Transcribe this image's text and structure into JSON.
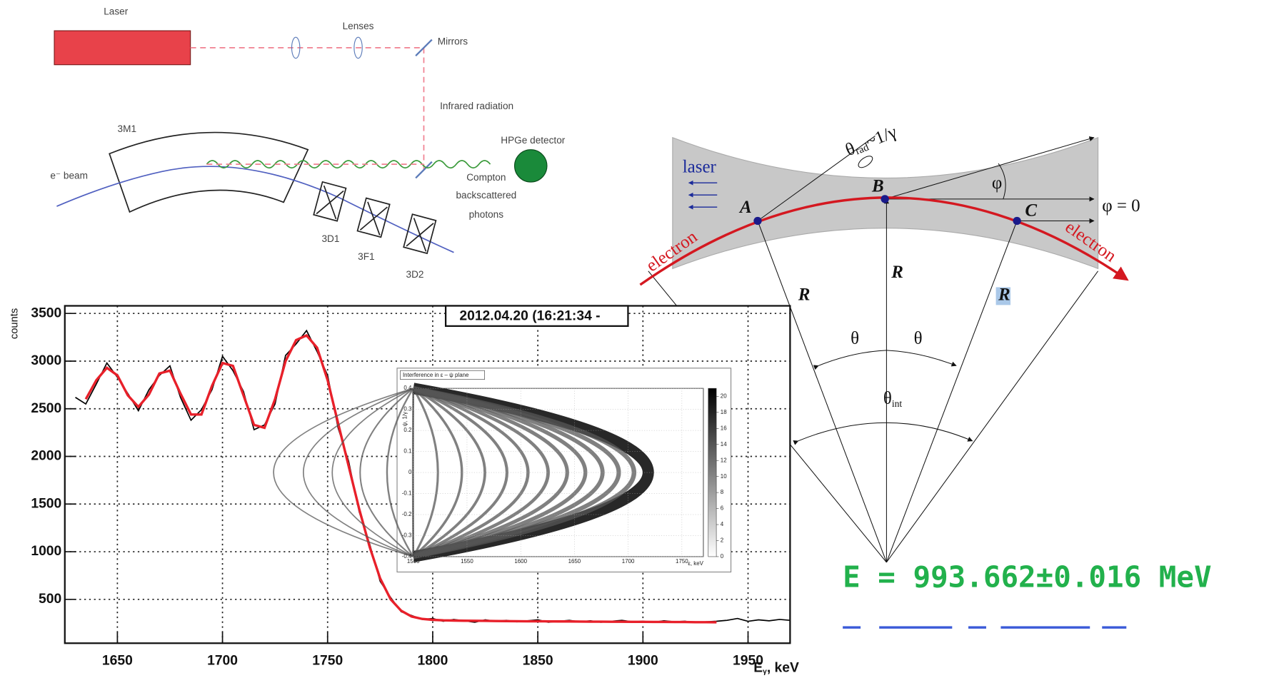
{
  "setup_diagram": {
    "laser": "Laser",
    "lenses": "Lenses",
    "mirrors": "Mirrors",
    "infrared": "Infrared radiation",
    "magnet": "3M1",
    "beam": "e⁻ beam",
    "detector": "HPGe detector",
    "photons": [
      "Compton",
      "backscattered",
      "photons"
    ],
    "quads": [
      "3D1",
      "3F1",
      "3D2"
    ]
  },
  "chart_data": [
    {
      "type": "line",
      "y_label": "counts",
      "x_label": {
        "main": "E",
        "sub": "γ",
        "rest": ", keV"
      },
      "annotation": "2012.04.20 (16:21:34 -",
      "xlim": [
        1625,
        1970
      ],
      "ylim": [
        40,
        3580
      ],
      "xticks": [
        1650,
        1700,
        1750,
        1800,
        1850,
        1900,
        1950
      ],
      "yticks": [
        500,
        1000,
        1500,
        2000,
        2500,
        3000,
        3500
      ],
      "grid": true,
      "series": [
        {
          "color": "#000000",
          "x": [
            1630,
            1635,
            1640,
            1645,
            1650,
            1655,
            1660,
            1665,
            1670,
            1675,
            1680,
            1685,
            1690,
            1695,
            1700,
            1705,
            1710,
            1715,
            1720,
            1725,
            1730,
            1735,
            1740,
            1745,
            1750,
            1755,
            1760,
            1765,
            1770,
            1775,
            1780,
            1785,
            1790,
            1795,
            1800,
            1805,
            1810,
            1815,
            1820,
            1825,
            1830,
            1835,
            1840,
            1845,
            1850,
            1855,
            1860,
            1865,
            1870,
            1875,
            1880,
            1885,
            1890,
            1895,
            1900,
            1905,
            1910,
            1915,
            1920,
            1925,
            1930,
            1935,
            1940,
            1945,
            1950,
            1955,
            1960,
            1965,
            1970
          ],
          "values": [
            2620,
            2550,
            2760,
            2980,
            2830,
            2660,
            2480,
            2700,
            2850,
            2950,
            2620,
            2380,
            2490,
            2700,
            3050,
            2900,
            2680,
            2280,
            2330,
            2550,
            3060,
            3180,
            3320,
            3100,
            2850,
            2300,
            1950,
            1420,
            1080,
            690,
            520,
            370,
            330,
            290,
            300,
            270,
            290,
            275,
            260,
            285,
            270,
            280,
            265,
            275,
            285,
            260,
            270,
            280,
            265,
            275,
            260,
            270,
            280,
            265,
            270,
            260,
            275,
            265,
            270,
            255,
            265,
            270,
            280,
            300,
            270,
            285,
            275,
            290,
            280
          ]
        },
        {
          "color": "#e8202a",
          "x": [
            1635,
            1640,
            1645,
            1650,
            1655,
            1660,
            1665,
            1670,
            1675,
            1680,
            1685,
            1690,
            1695,
            1700,
            1705,
            1710,
            1715,
            1720,
            1725,
            1730,
            1735,
            1740,
            1745,
            1750,
            1755,
            1760,
            1765,
            1770,
            1775,
            1780,
            1785,
            1790,
            1795,
            1800,
            1805,
            1810,
            1815,
            1820,
            1825,
            1830,
            1835,
            1840,
            1845,
            1850,
            1855,
            1860,
            1865,
            1870,
            1875,
            1880,
            1885,
            1890,
            1895,
            1900,
            1905,
            1910,
            1915,
            1920,
            1925,
            1930,
            1935
          ],
          "values": [
            2600,
            2800,
            2930,
            2850,
            2640,
            2520,
            2650,
            2870,
            2900,
            2660,
            2440,
            2440,
            2740,
            2980,
            2950,
            2640,
            2330,
            2300,
            2600,
            3000,
            3220,
            3270,
            3140,
            2800,
            2350,
            1900,
            1450,
            1050,
            720,
            500,
            380,
            320,
            295,
            285,
            280,
            278,
            276,
            275,
            274,
            273,
            272,
            271,
            270,
            270,
            269,
            268,
            268,
            267,
            266,
            266,
            265,
            265,
            264,
            264,
            263,
            263,
            262,
            262,
            261,
            261,
            260
          ]
        }
      ]
    },
    {
      "type": "heatmap",
      "title": "Interference in ε – ψ plane",
      "y_label": "ψ, 1/γ",
      "x_label": "ε, keV",
      "xlim": [
        1500,
        1770
      ],
      "ylim": [
        -0.4,
        0.4
      ],
      "xticks": [
        1500,
        1550,
        1600,
        1650,
        1700,
        1750
      ],
      "yticks": [
        -0.4,
        -0.3,
        -0.2,
        -0.1,
        0,
        0.1,
        0.2,
        0.3,
        0.4
      ],
      "zlim": [
        0,
        21
      ],
      "zticks": [
        0,
        2,
        4,
        6,
        8,
        10,
        12,
        14,
        16,
        18,
        20
      ]
    }
  ],
  "geometry_diagram": {
    "laser": "laser",
    "theta_rad": {
      "main": "θ",
      "sub": "rad",
      "rest": "~1/γ"
    },
    "phi": "φ",
    "phi_zero": "φ = 0",
    "points": [
      "A",
      "B",
      "C"
    ],
    "electron": [
      "electron",
      "electron"
    ],
    "radius": [
      "R",
      "R",
      "R"
    ],
    "theta": [
      "θ",
      "θ"
    ],
    "theta_int": {
      "main": "θ",
      "sub": "int"
    }
  },
  "result": "E = 993.662±0.016 MeV"
}
